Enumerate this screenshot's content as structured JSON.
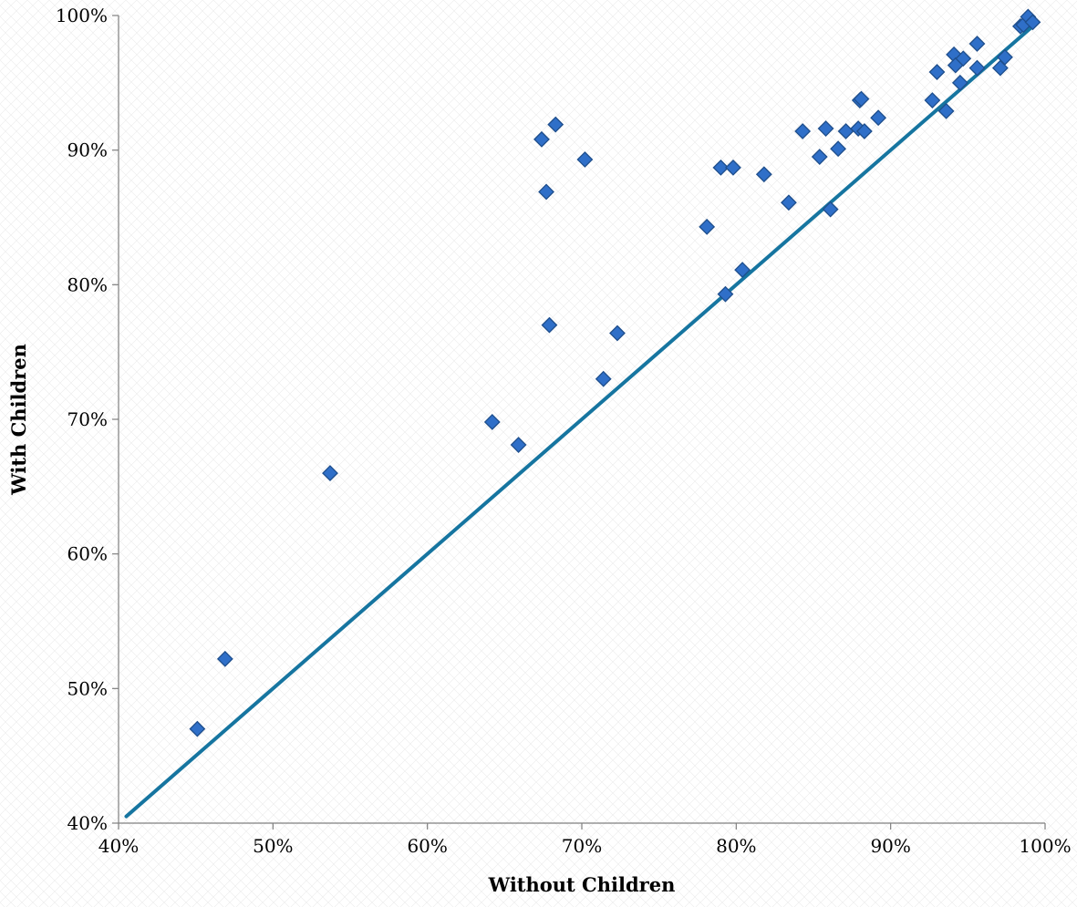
{
  "chart_data": {
    "type": "scatter",
    "title": "",
    "xlabel": "Without Children",
    "ylabel": "With Children",
    "xlim": [
      40,
      100
    ],
    "ylim": [
      40,
      100
    ],
    "x_ticks": [
      "40%",
      "50%",
      "60%",
      "70%",
      "80%",
      "90%",
      "100%"
    ],
    "y_ticks": [
      "40%",
      "50%",
      "60%",
      "70%",
      "80%",
      "90%",
      "100%"
    ],
    "grid": false,
    "legend": "none",
    "marker": "diamond",
    "colors": {
      "marker_fill": "#2F6FC8",
      "marker_stroke": "#1E4E8C",
      "reference_line": "#1675A0",
      "axis": "#7F7F7F"
    },
    "reference_line": {
      "from": [
        40.5,
        40.5
      ],
      "to": [
        99.5,
        99.5
      ]
    },
    "series": [
      {
        "points": [
          [
            45.1,
            47.0
          ],
          [
            46.9,
            52.2
          ],
          [
            53.7,
            66.0
          ],
          [
            64.2,
            69.8
          ],
          [
            65.9,
            68.1
          ],
          [
            67.4,
            90.8
          ],
          [
            67.7,
            86.9
          ],
          [
            67.9,
            77.0
          ],
          [
            68.3,
            91.9
          ],
          [
            70.2,
            89.3
          ],
          [
            71.4,
            73.0
          ],
          [
            72.3,
            76.4
          ],
          [
            78.1,
            84.3
          ],
          [
            79.0,
            88.7
          ],
          [
            79.3,
            79.3
          ],
          [
            79.8,
            88.7
          ],
          [
            80.4,
            81.1
          ],
          [
            81.8,
            88.2
          ],
          [
            83.4,
            86.1
          ],
          [
            84.3,
            91.4
          ],
          [
            85.4,
            89.5
          ],
          [
            85.8,
            91.6
          ],
          [
            86.1,
            85.6
          ],
          [
            86.6,
            90.1
          ],
          [
            87.1,
            91.4
          ],
          [
            87.9,
            91.6
          ],
          [
            88.0,
            93.7
          ],
          [
            88.1,
            93.8
          ],
          [
            88.3,
            91.4
          ],
          [
            89.2,
            92.4
          ],
          [
            92.7,
            93.7
          ],
          [
            93.0,
            95.8
          ],
          [
            93.6,
            92.9
          ],
          [
            94.1,
            97.1
          ],
          [
            94.2,
            96.3
          ],
          [
            94.5,
            95.0
          ],
          [
            94.7,
            96.8
          ],
          [
            95.6,
            97.9
          ],
          [
            95.6,
            96.1
          ],
          [
            97.1,
            96.1
          ],
          [
            97.4,
            96.9
          ],
          [
            98.4,
            99.2
          ],
          [
            98.6,
            99.3
          ],
          [
            98.9,
            99.9
          ],
          [
            99.2,
            99.5
          ]
        ]
      }
    ]
  }
}
